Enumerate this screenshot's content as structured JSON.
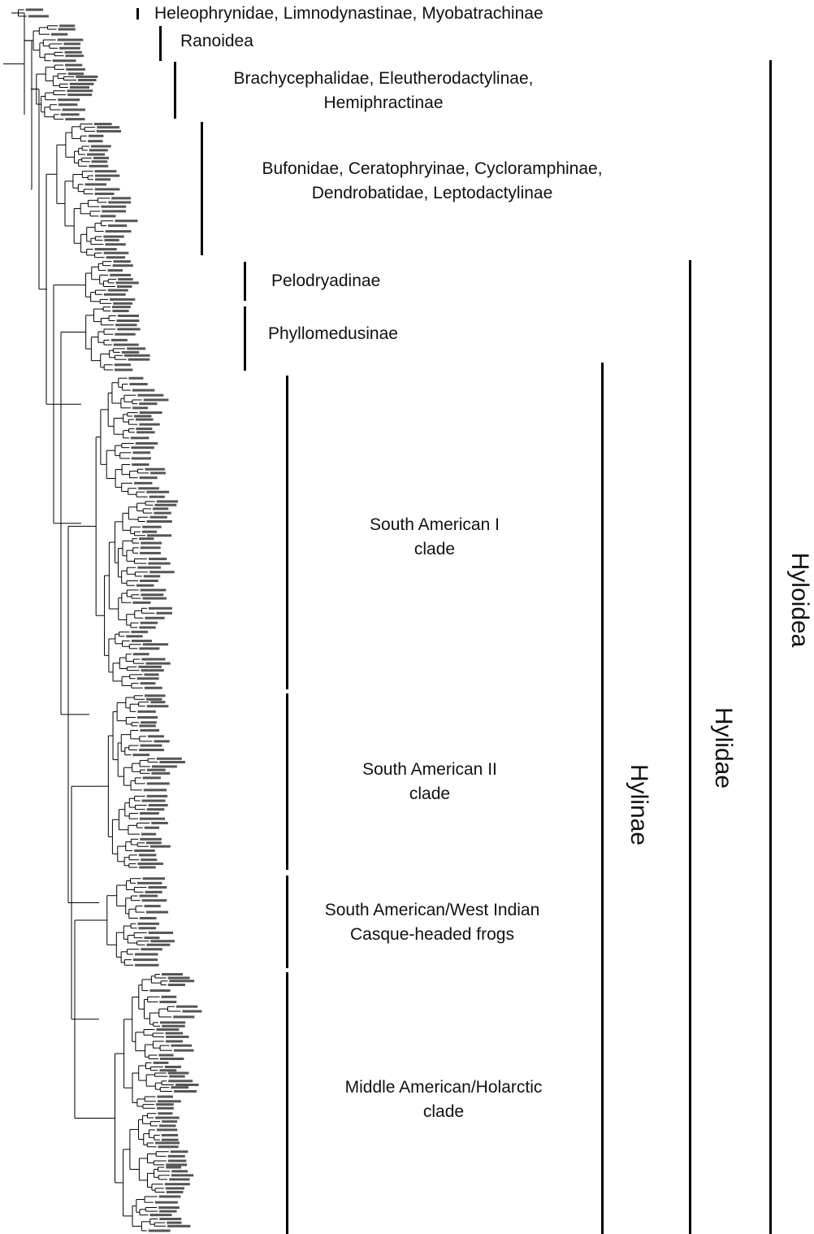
{
  "clade_labels": [
    {
      "id": "heleophrynidae",
      "lines": [
        "Heleophrynidae, Limnodynastinae, Myobatrachinae"
      ]
    },
    {
      "id": "ranoidea",
      "lines": [
        "Ranoidea"
      ]
    },
    {
      "id": "brachycephalidae",
      "lines": [
        "Brachycephalidae, Eleutherodactylinae,",
        "Hemiphractinae"
      ]
    },
    {
      "id": "bufonidae",
      "lines": [
        "Bufonidae, Ceratophryinae, Cycloramphinae,",
        "Dendrobatidae, Leptodactylinae"
      ]
    },
    {
      "id": "pelodryadinae",
      "lines": [
        "Pelodryadinae"
      ]
    },
    {
      "id": "phyllomedusinae",
      "lines": [
        "Phyllomedusinae"
      ]
    },
    {
      "id": "south-american-1",
      "lines": [
        "South American I",
        "clade"
      ]
    },
    {
      "id": "south-american-2",
      "lines": [
        "South American II",
        "clade"
      ]
    },
    {
      "id": "casque-headed",
      "lines": [
        "South American/West Indian",
        "Casque-headed frogs"
      ]
    },
    {
      "id": "middle-american",
      "lines": [
        "Middle American/Holarctic",
        "clade"
      ]
    }
  ],
  "taxon_labels": [
    {
      "id": "hylinae",
      "text": "Hylinae"
    },
    {
      "id": "hylidae",
      "text": "Hylidae"
    },
    {
      "id": "hyloidea",
      "text": "Hyloidea"
    }
  ],
  "colors": {
    "line": "#000000",
    "text": "#111111"
  }
}
